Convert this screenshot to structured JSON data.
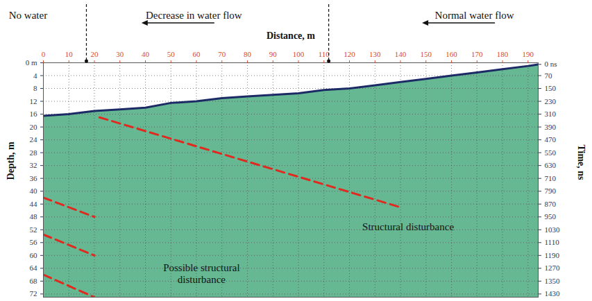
{
  "chart_data": {
    "type": "radargram",
    "x_label": "Distance, m",
    "y_label": "Depth, m",
    "y2_label": "Time, ns",
    "xlim": [
      0,
      194
    ],
    "xticks": [
      0,
      10,
      20,
      30,
      40,
      50,
      60,
      70,
      80,
      90,
      100,
      110,
      120,
      130,
      140,
      150,
      160,
      170,
      180,
      190
    ],
    "ylim": [
      0,
      73
    ],
    "yticks": [
      {
        "value": 0,
        "label": "0 m"
      },
      4,
      8,
      12,
      16,
      20,
      24,
      28,
      32,
      36,
      40,
      44,
      48,
      52,
      56,
      60,
      64,
      68,
      72
    ],
    "y2lim": [
      -10,
      1450
    ],
    "y2ticks": [
      {
        "value": 0,
        "label": "0 ns"
      },
      70,
      150,
      230,
      310,
      390,
      470,
      550,
      630,
      710,
      790,
      870,
      950,
      1030,
      1110,
      1190,
      1270,
      1350,
      1430
    ],
    "grid": true,
    "surface": {
      "color": "#1c2a66",
      "x": [
        0,
        10,
        20,
        30,
        40,
        50,
        60,
        70,
        80,
        90,
        100,
        110,
        120,
        130,
        140,
        150,
        160,
        170,
        180,
        190,
        194
      ],
      "y": [
        16.5,
        16,
        15,
        14.5,
        14,
        12.5,
        12,
        11,
        10.5,
        10,
        9.5,
        8.5,
        8,
        7,
        6,
        5,
        4,
        3,
        2,
        1,
        0.5
      ]
    },
    "lines": [
      {
        "x": [
          22,
          140
        ],
        "y": [
          17,
          45
        ],
        "color": "#e02a1f",
        "line_style": "dashed"
      },
      {
        "x": [
          0,
          20
        ],
        "y": [
          42,
          48
        ],
        "color": "#e02a1f",
        "line_style": "dashed"
      },
      {
        "x": [
          0,
          20
        ],
        "y": [
          53.5,
          60
        ],
        "color": "#e02a1f",
        "line_style": "dashed"
      },
      {
        "x": [
          0,
          20
        ],
        "y": [
          66,
          73
        ],
        "color": "#e02a1f",
        "line_style": "dashed"
      }
    ],
    "zones": {
      "boundaries": [
        17,
        112
      ],
      "labels": [
        {
          "text": "No water",
          "x": -6
        },
        {
          "text": "Decrease in water flow",
          "x": 59
        },
        {
          "text": "Normal water flow",
          "x": 169
        }
      ]
    },
    "annotations": [
      {
        "text": "Structural disturbance",
        "x": 143,
        "y": 51
      },
      {
        "text": "Possible structural disturbance",
        "x": 62,
        "y": 65.5
      }
    ]
  }
}
